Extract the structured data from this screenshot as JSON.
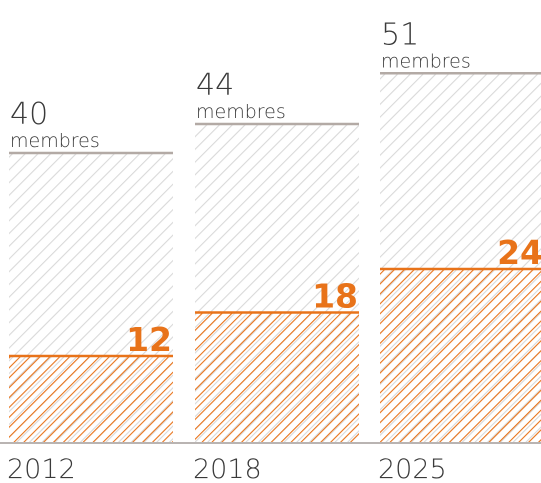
{
  "chart_data": {
    "type": "bar",
    "categories": [
      "2012",
      "2018",
      "2025"
    ],
    "totals": [
      40,
      44,
      51
    ],
    "totals_labels": [
      "40",
      "44",
      "51"
    ],
    "total_unit": "membres",
    "series": [
      {
        "values": [
          12,
          18,
          24
        ]
      }
    ],
    "value_labels": [
      "12",
      "18",
      "24"
    ],
    "ylim": [
      0,
      51
    ],
    "grid": false,
    "legend": "none",
    "colors": {
      "highlight": "#e8731a",
      "total_hatch": "#d9d9d9",
      "total_line": "#b3aaa5",
      "baseline": "#b9b4b2",
      "text": "#3a3a3a"
    }
  }
}
